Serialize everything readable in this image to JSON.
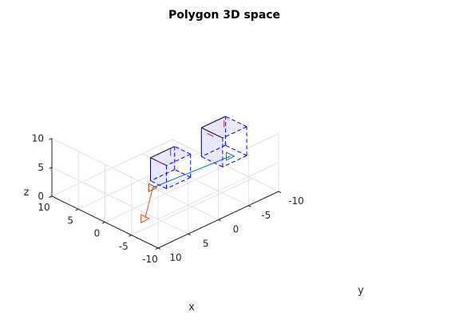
{
  "chart_data": {
    "type": "3d-line",
    "title": "Polygon 3D space",
    "xlabel": "x",
    "ylabel": "y",
    "zlabel": "z",
    "xlim": [
      -10,
      10
    ],
    "ylim": [
      -10,
      10
    ],
    "zlim": [
      0,
      10
    ],
    "grid": true,
    "x_ticks": [
      "10",
      "5",
      "0",
      "-5",
      "-10"
    ],
    "y_ticks": [
      "-10",
      "-5",
      "0",
      "5",
      "10"
    ],
    "z_ticks": [
      "0",
      "5",
      "10"
    ],
    "box_color": "#0000ff",
    "box_fill": "#e6e6ff",
    "normal_color": "#cc2222",
    "series": [
      {
        "color": "#0072bd",
        "kind": "ray",
        "from": [
          -9,
          10,
          10
        ],
        "to": [
          -10,
          -2,
          10
        ]
      },
      {
        "color": "#d95319",
        "kind": "ray",
        "from": [
          -9,
          10,
          10
        ],
        "to": [
          -3,
          6,
          0
        ]
      }
    ],
    "boxes": [
      {
        "center": [
          -1,
          0,
          5
        ],
        "size": [
          3,
          4,
          4
        ]
      },
      {
        "center": [
          -2,
          -8,
          6
        ],
        "size": [
          4,
          4,
          5
        ]
      }
    ]
  }
}
